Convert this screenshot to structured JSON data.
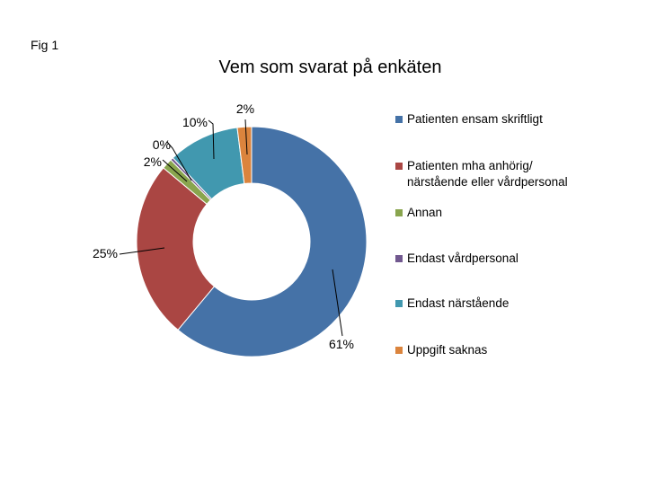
{
  "figure_label": "Fig 1",
  "chart_data": {
    "type": "pie",
    "donut": true,
    "title": "Vem som svarat på enkäten",
    "series": [
      {
        "name": "Patienten ensam skriftligt",
        "value": 61,
        "label": "61%",
        "color": "#4572A7"
      },
      {
        "name": "Patienten mha anhörig/\nnärstående eller vårdpersonal",
        "value": 25,
        "label": "25%",
        "color": "#AA4643"
      },
      {
        "name": "Annan",
        "value": 1.5,
        "label": "2%",
        "color": "#89A54E"
      },
      {
        "name": "Endast vårdpersonal",
        "value": 0.4,
        "label": "0%",
        "color": "#71588F"
      },
      {
        "name": "Endast närstående",
        "value": 10,
        "label": "10%",
        "color": "#4198AF"
      },
      {
        "name": "Uppgift saknas",
        "value": 2,
        "label": "2%",
        "color": "#DB843D"
      }
    ],
    "legend_position": "right"
  }
}
